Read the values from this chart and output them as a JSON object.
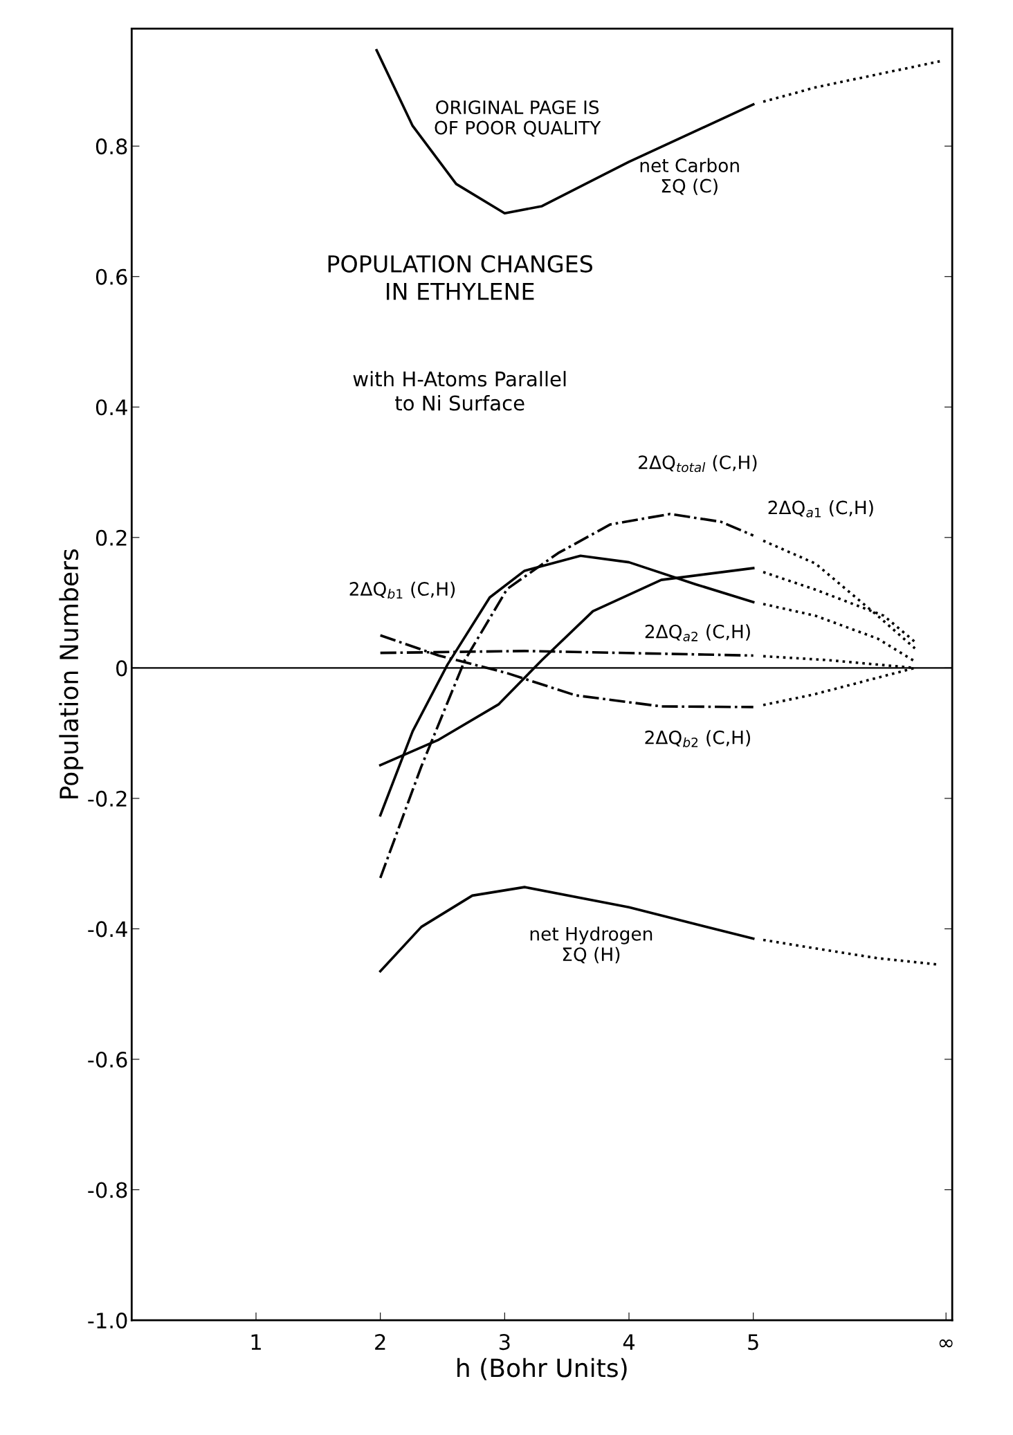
{
  "chart_data": {
    "type": "line",
    "title": "POPULATION CHANGES\nIN ETHYLENE",
    "subtitle": "with H-Atoms Parallel\nto Ni Surface",
    "xlabel": "h (Bohr Units)",
    "ylabel": "Population Numbers",
    "xlim": [
      0,
      6.6
    ],
    "ylim": [
      -1.0,
      0.98
    ],
    "xticks": [
      1,
      2,
      3,
      4,
      5,
      {
        "value": 6.55,
        "label": "∞"
      }
    ],
    "yticks": [
      {
        "value": -1.0,
        "label": "-1.0"
      },
      {
        "value": -0.8,
        "label": "-0.8"
      },
      {
        "value": -0.6,
        "label": "-0.6"
      },
      {
        "value": -0.4,
        "label": "-0.4"
      },
      {
        "value": -0.2,
        "label": "-0.2"
      },
      0,
      0.2,
      0.4,
      0.6,
      0.8
    ],
    "grid": false,
    "marker": "none",
    "ref_lines": [
      {
        "axis": "y",
        "value": 0,
        "color": "#000000",
        "line_style": "solid"
      }
    ],
    "series": [
      {
        "color": "#000000",
        "line_style": "solid",
        "x": [
          1.97,
          2.26,
          2.61,
          3.0,
          3.3,
          4.0,
          5.0
        ],
        "values": [
          0.947,
          0.831,
          0.742,
          0.697,
          0.708,
          0.776,
          0.864
        ]
      },
      {
        "color": "#000000",
        "line_style": "dotted",
        "x": [
          5.08,
          5.5,
          6.0,
          6.5
        ],
        "values": [
          0.868,
          0.89,
          0.91,
          0.93
        ]
      },
      {
        "color": "#000000",
        "line_style": "solid",
        "x": [
          2.0,
          2.33,
          2.74,
          3.16,
          4.0,
          5.0
        ],
        "values": [
          -0.465,
          -0.397,
          -0.349,
          -0.336,
          -0.367,
          -0.415
        ]
      },
      {
        "color": "#000000",
        "line_style": "dotted",
        "x": [
          5.08,
          5.5,
          6.0,
          6.5
        ],
        "values": [
          -0.417,
          -0.43,
          -0.445,
          -0.455
        ]
      },
      {
        "color": "#000000",
        "line_style": "solid",
        "x": [
          2.0,
          2.26,
          2.54,
          2.88,
          3.16,
          3.61,
          4.0,
          4.54,
          5.0
        ],
        "values": [
          -0.226,
          -0.097,
          0.005,
          0.108,
          0.149,
          0.172,
          0.162,
          0.128,
          0.101
        ]
      },
      {
        "color": "#000000",
        "line_style": "dotted",
        "x": [
          5.08,
          5.5,
          6.0,
          6.3
        ],
        "values": [
          0.098,
          0.08,
          0.045,
          0.01
        ]
      },
      {
        "color": "#000000",
        "line_style": "dashed",
        "x": [
          2.0,
          2.33,
          2.68,
          3.02,
          3.43,
          3.85,
          4.33,
          4.74,
          5.0
        ],
        "values": [
          -0.322,
          -0.151,
          0.012,
          0.121,
          0.176,
          0.22,
          0.236,
          0.224,
          0.203
        ]
      },
      {
        "color": "#000000",
        "line_style": "dotted",
        "x": [
          5.08,
          5.5,
          6.0,
          6.3
        ],
        "values": [
          0.195,
          0.16,
          0.08,
          0.03
        ]
      },
      {
        "color": "#000000",
        "line_style": "solid",
        "x": [
          2.0,
          2.47,
          2.95,
          3.3,
          3.71,
          4.26,
          5.0
        ],
        "values": [
          -0.149,
          -0.11,
          -0.056,
          0.012,
          0.087,
          0.135,
          0.153
        ]
      },
      {
        "color": "#000000",
        "line_style": "dotted",
        "x": [
          5.08,
          5.5,
          6.05,
          6.3
        ],
        "values": [
          0.147,
          0.12,
          0.08,
          0.04
        ]
      },
      {
        "color": "#000000",
        "line_style": "dashed",
        "x": [
          2.0,
          3.16,
          5.0
        ],
        "values": [
          0.023,
          0.026,
          0.019
        ]
      },
      {
        "color": "#000000",
        "line_style": "dotted",
        "x": [
          5.08,
          5.6,
          6.3
        ],
        "values": [
          0.018,
          0.012,
          0.0
        ]
      },
      {
        "color": "#000000",
        "line_style": "dashed",
        "x": [
          2.0,
          2.47,
          3.02,
          3.57,
          4.26,
          5.0
        ],
        "values": [
          0.05,
          0.019,
          -0.008,
          -0.042,
          -0.059,
          -0.06
        ]
      },
      {
        "color": "#000000",
        "line_style": "dotted",
        "x": [
          5.08,
          5.5,
          6.0,
          6.3
        ],
        "values": [
          -0.057,
          -0.04,
          -0.015,
          0.0
        ]
      }
    ],
    "annotations": [
      "ORIGINAL PAGE IS\nOF POOR QUALITY",
      "net Carbon\nΣQ (C)",
      "2ΔQ$_{total}$ (C,H)",
      "2ΔQ$_{a1}$ (C,H)",
      "2ΔQ$_{b1}$ (C,H)",
      "2ΔQ$_{a2}$ (C,H)",
      "2ΔQ$_{b2}$ (C,H)",
      "net Hydrogen\nΣQ (H)"
    ]
  }
}
